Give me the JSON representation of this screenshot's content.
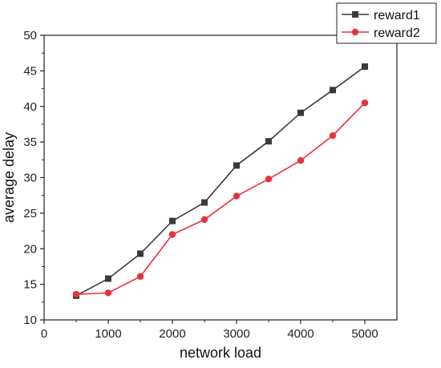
{
  "chart_data": {
    "type": "line",
    "title": "",
    "xlabel": "network load",
    "ylabel": "average delay",
    "xlim": [
      0,
      5500
    ],
    "ylim": [
      10,
      50
    ],
    "xticks": [
      0,
      1000,
      2000,
      3000,
      4000,
      5000
    ],
    "yticks": [
      10,
      15,
      20,
      25,
      30,
      35,
      40,
      45,
      50
    ],
    "grid": false,
    "legend_position": "top-right",
    "x": [
      500,
      1000,
      1500,
      2000,
      2500,
      3000,
      3500,
      4000,
      4500,
      5000
    ],
    "series": [
      {
        "name": "reward1",
        "color": "#3a3a3a",
        "marker": "square",
        "values": [
          13.4,
          15.8,
          19.3,
          23.9,
          26.5,
          31.7,
          35.1,
          39.1,
          42.3,
          45.6
        ]
      },
      {
        "name": "reward2",
        "color": "#e8323c",
        "marker": "circle",
        "values": [
          13.6,
          13.8,
          16.1,
          22.0,
          24.1,
          27.4,
          29.8,
          32.4,
          35.9,
          40.5
        ]
      }
    ]
  }
}
